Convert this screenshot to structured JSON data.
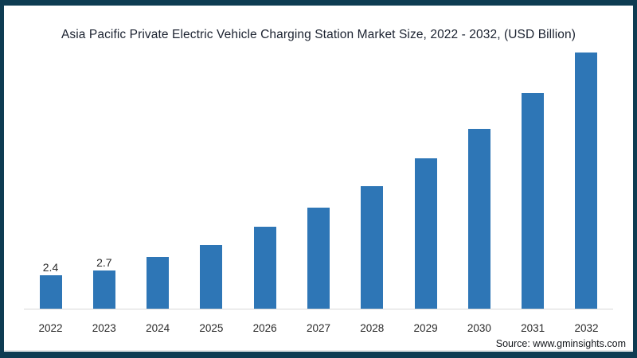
{
  "frame": {
    "border_color": "#0e3c52",
    "background_color": "#ffffff"
  },
  "chart_data": {
    "type": "bar",
    "title": "Asia Pacific Private Electric Vehicle Charging Station Market Size, 2022 - 2032, (USD Billion)",
    "categories": [
      "2022",
      "2023",
      "2024",
      "2025",
      "2026",
      "2027",
      "2028",
      "2029",
      "2030",
      "2031",
      "2032"
    ],
    "values": [
      2.4,
      2.7,
      3.7,
      4.5,
      5.8,
      7.2,
      8.7,
      10.7,
      12.8,
      15.3,
      18.2
    ],
    "data_labels": [
      "2.4",
      "2.7",
      "",
      "",
      "",
      "",
      "",
      "",
      "",
      "",
      ""
    ],
    "bar_color": "#2e76b6",
    "xlabel": "",
    "ylabel": "",
    "ylim": [
      0,
      19
    ],
    "y_axis_visible": false,
    "grid": false,
    "legend": "none",
    "baseline_color": "#d9d9d9"
  },
  "footer": {
    "source_label": "Source: www.gminsights.com"
  }
}
